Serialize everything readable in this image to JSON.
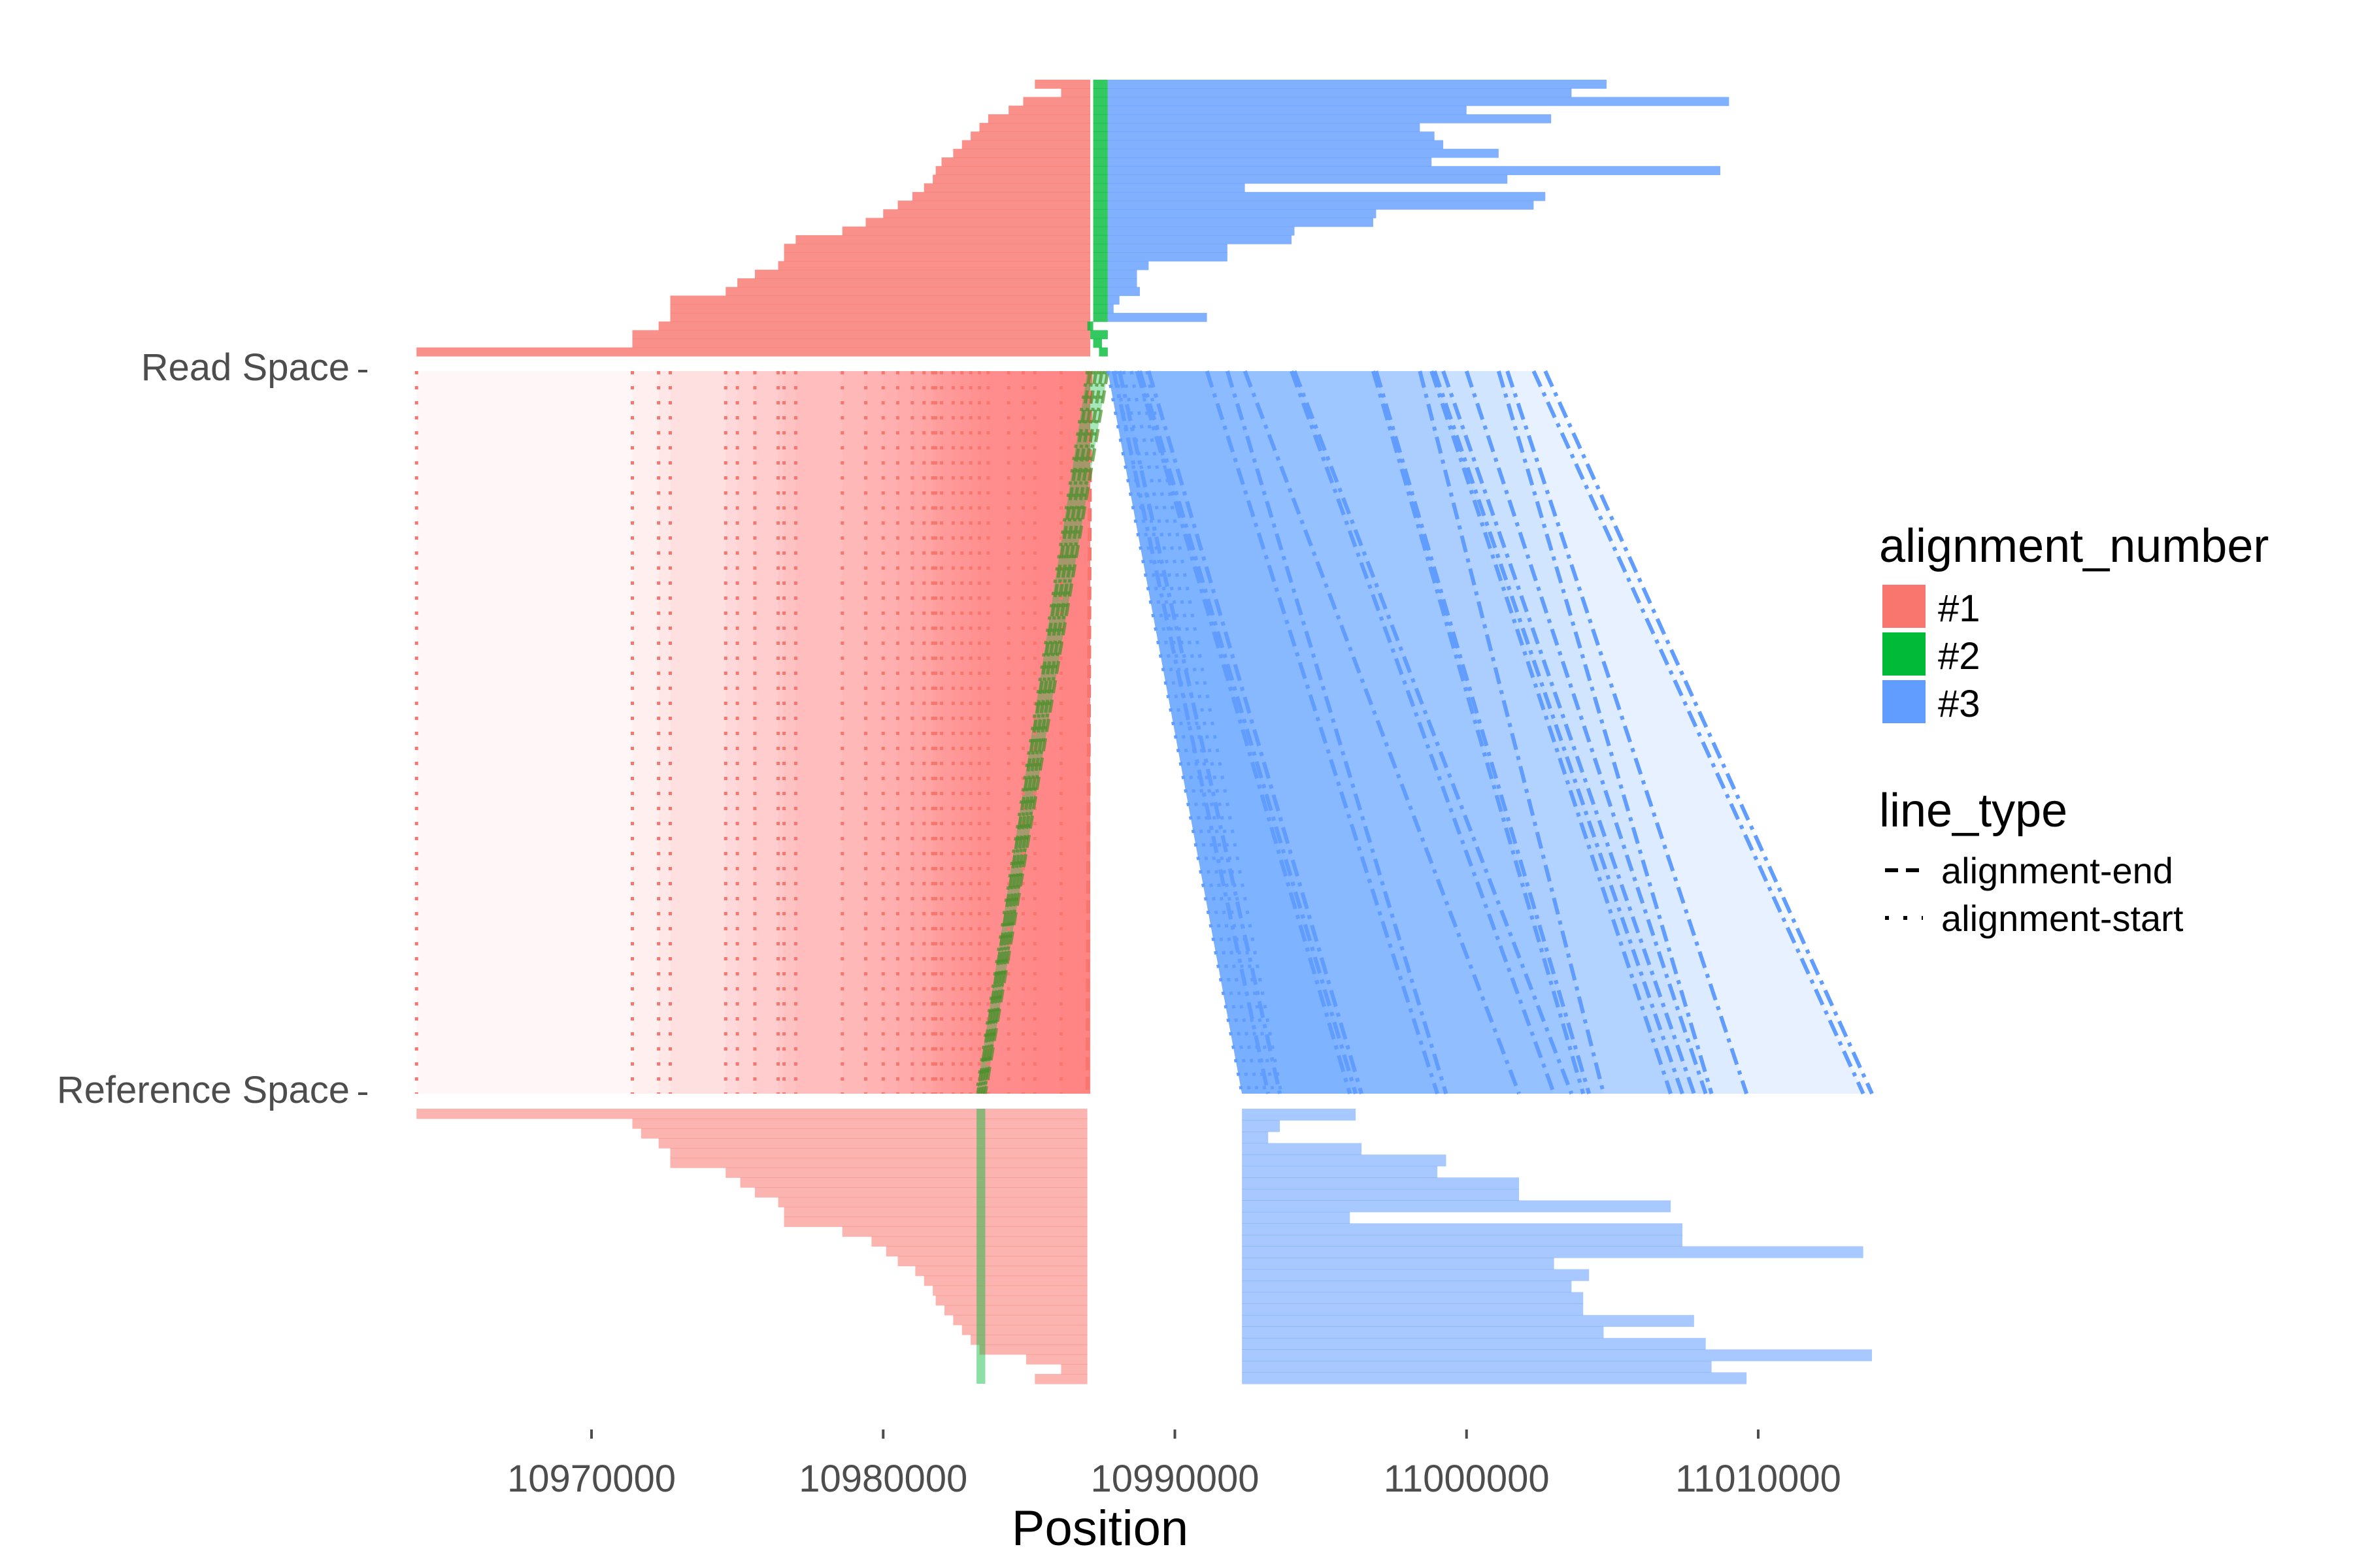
{
  "chart_data": {
    "type": "alignment-ribbon",
    "xlabel": "Position",
    "ylabels": [
      "Read Space",
      "Reference Space"
    ],
    "x_ticks": [
      10970000,
      10980000,
      10990000,
      11000000,
      11010000
    ],
    "x_tick_labels": [
      "10970000",
      "10980000",
      "10990000",
      "11000000",
      "11010000"
    ],
    "xlim": [
      10962000,
      11015000
    ],
    "legend_position": "right",
    "legend_alignment_title": "alignment_number",
    "legend_alignment_entries": [
      "#1",
      "#2",
      "#3"
    ],
    "legend_linetype_title": "line_type",
    "legend_linetype_entries": [
      "alignment-end",
      "alignment-start"
    ],
    "colors": {
      "#1": "#F8766D",
      "#2": "#00BA38",
      "#3": "#619CFF"
    },
    "read_space": {
      "alignment_1": {
        "end": 10987100,
        "starts": [
          10985200,
          10986100,
          10984800,
          10984300,
          10983600,
          10983300,
          10983000,
          10982700,
          10982400,
          10982000,
          10981800,
          10981700,
          10981400,
          10981000,
          10980500,
          10980000,
          10979400,
          10978600,
          10977000,
          10976600,
          10976600,
          10976400,
          10975600,
          10975000,
          10974600,
          10972700,
          10972700,
          10972700,
          10972300,
          10971400,
          10971400,
          10964000
        ]
      },
      "alignment_2": {
        "starts": [
          10987200,
          10987200,
          10987200,
          10987200,
          10987200,
          10987200,
          10987200,
          10987200,
          10987200,
          10987200,
          10987200,
          10987200,
          10987200,
          10987200,
          10987200,
          10987200,
          10987200,
          10987200,
          10987200,
          10987200,
          10987200,
          10987200,
          10987200,
          10987200,
          10987200,
          10987200,
          10987200,
          10987200,
          10987000,
          10987100,
          10987200,
          10987400
        ],
        "ends": [
          10987700,
          10987700,
          10987700,
          10987700,
          10987700,
          10987700,
          10987700,
          10987700,
          10987700,
          10987700,
          10987700,
          10987700,
          10987700,
          10987700,
          10987700,
          10987700,
          10987700,
          10987700,
          10987700,
          10987700,
          10987700,
          10987700,
          10987700,
          10987700,
          10987700,
          10987700,
          10987700,
          10987700,
          10987200,
          10987700,
          10987500,
          10987700
        ]
      },
      "alignment_3": {
        "start": 10987700,
        "ends": [
          11004800,
          11003600,
          11009000,
          11000000,
          11002900,
          10998400,
          10998900,
          10999200,
          11001100,
          10998800,
          11008700,
          11001400,
          10992400,
          11002700,
          11002300,
          10996900,
          10996800,
          10994100,
          10994000,
          10991800,
          10991800,
          10989100,
          10988700,
          10988700,
          10988800,
          10988100,
          10987900,
          10991100
        ]
      }
    },
    "reference_space": {
      "alignment_1": {
        "end": 10987000,
        "starts": [
          10964000,
          10971400,
          10971700,
          10972300,
          10972700,
          10972700,
          10974600,
          10975100,
          10975600,
          10976400,
          10976600,
          10976600,
          10978600,
          10979600,
          10980100,
          10980500,
          10981100,
          10981400,
          10981700,
          10981800,
          10982100,
          10982400,
          10982700,
          10983000,
          10983300,
          10984900,
          10986100,
          10985200
        ]
      },
      "alignment_2": {
        "start": 10983200,
        "end": 10983500
      },
      "alignment_3": {
        "start": 10992300,
        "ends": [
          10996200,
          10993600,
          10993200,
          10996400,
          10999300,
          10999000,
          11001800,
          11001800,
          11007000,
          10996000,
          11007400,
          11007400,
          11013600,
          11003000,
          11004200,
          11003600,
          11004000,
          11004000,
          11007800,
          11004700,
          11008200,
          11013900,
          11008400,
          11009600
        ]
      }
    }
  }
}
